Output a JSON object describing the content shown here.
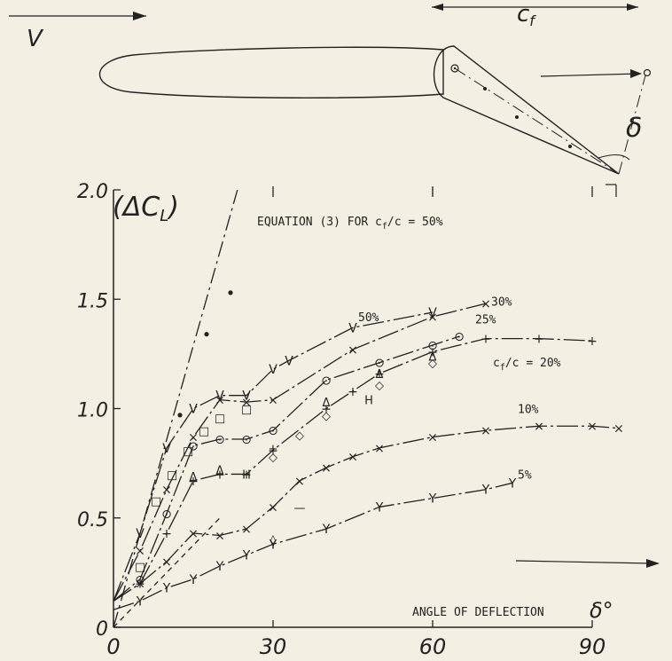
{
  "diagram": {
    "velocity_label": "V",
    "flap_chord_label": "c",
    "flap_chord_subscript": "f",
    "deflection_label": "δ"
  },
  "chart_data": {
    "type": "line",
    "ylabel": "(ΔC",
    "ylabel_subscript": "L",
    "ylabel_suffix": ")",
    "xlabel": "ANGLE OF DEFLECTION",
    "xlabel_symbol": "δ°",
    "xlim": [
      0,
      90
    ],
    "ylim": [
      0,
      2.0
    ],
    "x_ticks": [
      0,
      30,
      60,
      90
    ],
    "y_ticks": [
      {
        "value": 0,
        "label": "0"
      },
      {
        "value": 0.5,
        "label": "0.5"
      },
      {
        "value": 1.0,
        "label": "1.0"
      },
      {
        "value": 1.5,
        "label": "1.5"
      },
      {
        "value": 2.0,
        "label": "2.0"
      }
    ],
    "equation_label": "EQUATION (3) FOR c",
    "equation_label_subscript": "f",
    "equation_label_suffix": "/c = 50%",
    "cf_c_label": "c",
    "cf_c_subscript": "f",
    "cf_c_suffix": "/c = 20%",
    "theory_line": {
      "x": [
        0,
        23.3
      ],
      "y": [
        0,
        2.0
      ]
    },
    "theory_points": {
      "x": [
        12.5,
        17.5,
        22
      ],
      "y": [
        0.97,
        1.34,
        1.53
      ]
    },
    "dashed_line": {
      "x": [
        0,
        20
      ],
      "y": [
        0,
        0.5
      ]
    },
    "series": [
      {
        "name": "50%",
        "label_pos": [
          46,
          1.4
        ],
        "marker": "V",
        "x": [
          0,
          5,
          10,
          15,
          20,
          25,
          30,
          33,
          45,
          60
        ],
        "y": [
          0.12,
          0.43,
          0.82,
          1.0,
          1.06,
          1.06,
          1.18,
          1.22,
          1.37,
          1.44
        ]
      },
      {
        "name": "30%",
        "label_pos": [
          71,
          1.47
        ],
        "marker": "x",
        "x": [
          0,
          5,
          10,
          15,
          20,
          25,
          30,
          45,
          60,
          70
        ],
        "y": [
          0.12,
          0.35,
          0.63,
          0.87,
          1.04,
          1.03,
          1.04,
          1.27,
          1.42,
          1.48
        ]
      },
      {
        "name": "25%",
        "label_pos": [
          68,
          1.39
        ],
        "marker": "o",
        "x": [
          0,
          5,
          10,
          15,
          20,
          25,
          30,
          40,
          50,
          60,
          65
        ],
        "y": [
          0.12,
          0.22,
          0.52,
          0.83,
          0.86,
          0.86,
          0.9,
          1.13,
          1.21,
          1.29,
          1.33
        ]
      },
      {
        "name": "20%",
        "label_pos": [
          0,
          0
        ],
        "marker": "+",
        "x": [
          0,
          5,
          10,
          15,
          20,
          25,
          30,
          40,
          45,
          50,
          60,
          70,
          80,
          90
        ],
        "y": [
          0.12,
          0.2,
          0.43,
          0.67,
          0.7,
          0.7,
          0.81,
          1.0,
          1.08,
          1.16,
          1.26,
          1.32,
          1.32,
          1.31
        ]
      },
      {
        "name": "10%",
        "label_pos": [
          76,
          0.98
        ],
        "marker": "x",
        "x": [
          0,
          5,
          10,
          15,
          20,
          25,
          30,
          35,
          40,
          45,
          50,
          60,
          70,
          80,
          90,
          95
        ],
        "y": [
          0.12,
          0.2,
          0.3,
          0.43,
          0.42,
          0.45,
          0.55,
          0.67,
          0.73,
          0.78,
          0.82,
          0.87,
          0.9,
          0.92,
          0.92,
          0.91
        ]
      },
      {
        "name": "5%",
        "label_pos": [
          76,
          0.68
        ],
        "marker": "Y",
        "x": [
          0,
          5,
          10,
          15,
          20,
          25,
          30,
          40,
          50,
          60,
          70,
          75
        ],
        "y": [
          0.08,
          0.12,
          0.18,
          0.22,
          0.28,
          0.33,
          0.38,
          0.45,
          0.55,
          0.59,
          0.63,
          0.66
        ]
      }
    ],
    "extra_markers": [
      {
        "x": 5,
        "y": 0.28,
        "m": "□"
      },
      {
        "x": 8,
        "y": 0.58,
        "m": "□"
      },
      {
        "x": 11,
        "y": 0.7,
        "m": "□"
      },
      {
        "x": 14,
        "y": 0.81,
        "m": "□"
      },
      {
        "x": 17,
        "y": 0.9,
        "m": "□"
      },
      {
        "x": 20,
        "y": 0.96,
        "m": "□"
      },
      {
        "x": 25,
        "y": 1.0,
        "m": "□"
      },
      {
        "x": 15,
        "y": 0.69,
        "m": "Δ"
      },
      {
        "x": 20,
        "y": 0.72,
        "m": "Δ"
      },
      {
        "x": 40,
        "y": 1.03,
        "m": "Δ"
      },
      {
        "x": 50,
        "y": 1.16,
        "m": "Δ"
      },
      {
        "x": 60,
        "y": 1.24,
        "m": "Δ"
      },
      {
        "x": 30,
        "y": 0.78,
        "m": "◇"
      },
      {
        "x": 35,
        "y": 0.88,
        "m": "◇"
      },
      {
        "x": 40,
        "y": 0.97,
        "m": "◇"
      },
      {
        "x": 50,
        "y": 1.11,
        "m": "◇"
      },
      {
        "x": 60,
        "y": 1.21,
        "m": "◇"
      },
      {
        "x": 30,
        "y": 0.4,
        "m": "◊"
      },
      {
        "x": 30,
        "y": 0.82,
        "m": "+"
      },
      {
        "x": 48,
        "y": 1.04,
        "m": "H"
      },
      {
        "x": 25,
        "y": 0.7,
        "m": "H"
      },
      {
        "x": 35,
        "y": 0.55,
        "m": "—"
      }
    ]
  }
}
